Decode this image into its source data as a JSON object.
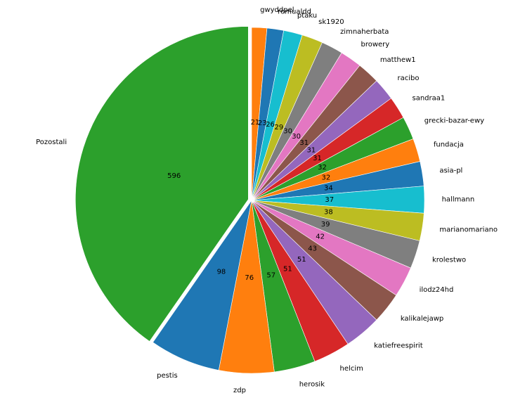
{
  "chart_data": {
    "type": "pie",
    "start_angle_deg": 90,
    "direction": "clockwise",
    "explode": {
      "Pozostali": 0.02
    },
    "slices": [
      {
        "label": "gwyddpel",
        "value": 21,
        "color": "#ff7f0e"
      },
      {
        "label": "romualdd",
        "value": 23,
        "color": "#1f77b4"
      },
      {
        "label": "ptaku",
        "value": 26,
        "color": "#17becf"
      },
      {
        "label": "sk1920",
        "value": 29,
        "color": "#bcbd22"
      },
      {
        "label": "zimnaherbata",
        "value": 30,
        "color": "#7f7f7f"
      },
      {
        "label": "browery",
        "value": 30,
        "color": "#e377c2"
      },
      {
        "label": "matthew1",
        "value": 31,
        "color": "#8c564b"
      },
      {
        "label": "racibo",
        "value": 31,
        "color": "#9467bd"
      },
      {
        "label": "sandraa1",
        "value": 31,
        "color": "#d62728"
      },
      {
        "label": "grecki-bazar-ewy",
        "value": 32,
        "color": "#2ca02c"
      },
      {
        "label": "fundacja",
        "value": 32,
        "color": "#ff7f0e"
      },
      {
        "label": "asia-pl",
        "value": 34,
        "color": "#1f77b4"
      },
      {
        "label": "hallmann",
        "value": 37,
        "color": "#17becf"
      },
      {
        "label": "marianomariano",
        "value": 38,
        "color": "#bcbd22"
      },
      {
        "label": "krolestwo",
        "value": 39,
        "color": "#7f7f7f"
      },
      {
        "label": "ilodz24hd",
        "value": 42,
        "color": "#e377c2"
      },
      {
        "label": "kalikalejawp",
        "value": 43,
        "color": "#8c564b"
      },
      {
        "label": "katiefreespirit",
        "value": 51,
        "color": "#9467bd"
      },
      {
        "label": "helcim",
        "value": 51,
        "color": "#d62728"
      },
      {
        "label": "herosik",
        "value": 57,
        "color": "#2ca02c"
      },
      {
        "label": "zdp",
        "value": 76,
        "color": "#ff7f0e"
      },
      {
        "label": "pestis",
        "value": 98,
        "color": "#1f77b4"
      },
      {
        "label": "Pozostali",
        "value": 596,
        "color": "#2ca02c"
      }
    ]
  }
}
